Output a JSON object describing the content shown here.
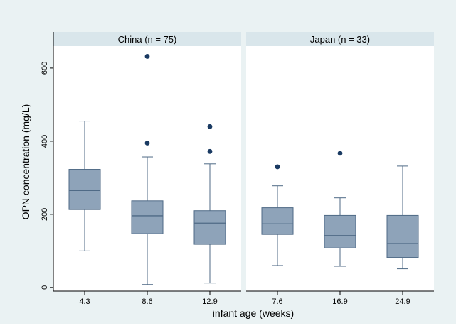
{
  "chart_data": {
    "type": "boxplot",
    "ylabel": "OPN concentration (mg/L)",
    "xlabel": "infant age (weeks)",
    "ylim": [
      -10,
      660
    ],
    "yticks": [
      0,
      200,
      400,
      600
    ],
    "grid": false,
    "colors": {
      "outer_bg": "#EAF2F3",
      "panel_bg": "#FFFFFF",
      "strip_bg": "#D9E6EB",
      "box_fill": "#8EA3B9",
      "box_stroke": "#4F6A86",
      "outlier": "#1A3A62",
      "axis": "#000000"
    },
    "panels": [
      {
        "title": "China (n = 75)",
        "categories": [
          "4.3",
          "8.6",
          "12.9"
        ],
        "boxes": [
          {
            "min": 100,
            "q1": 213,
            "median": 265,
            "q3": 323,
            "max": 455,
            "outliers": []
          },
          {
            "min": 8,
            "q1": 147,
            "median": 196,
            "q3": 237,
            "max": 357,
            "outliers": [
              395,
              632
            ]
          },
          {
            "min": 12,
            "q1": 118,
            "median": 176,
            "q3": 210,
            "max": 338,
            "outliers": [
              372,
              440
            ]
          }
        ]
      },
      {
        "title": "Japan (n = 33)",
        "categories": [
          "7.6",
          "16.9",
          "24.9"
        ],
        "boxes": [
          {
            "min": 60,
            "q1": 145,
            "median": 174,
            "q3": 218,
            "max": 278,
            "outliers": [
              330
            ]
          },
          {
            "min": 58,
            "q1": 108,
            "median": 142,
            "q3": 197,
            "max": 245,
            "outliers": [
              367
            ]
          },
          {
            "min": 51,
            "q1": 82,
            "median": 120,
            "q3": 197,
            "max": 332,
            "outliers": []
          }
        ]
      }
    ]
  }
}
